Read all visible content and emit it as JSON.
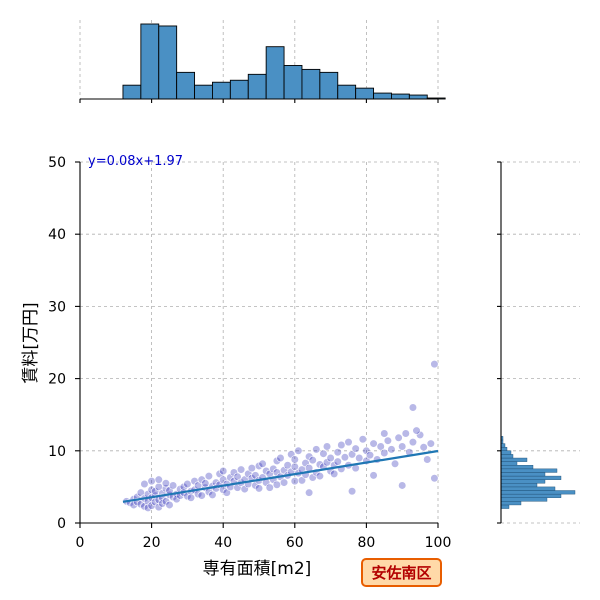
{
  "chart_data": {
    "type": "scatter",
    "xlabel": "専有面積[m2]",
    "ylabel": "賃料[万円]",
    "xlim": [
      0,
      100
    ],
    "ylim": [
      0,
      50
    ],
    "xticks": [
      0,
      20,
      40,
      60,
      80,
      100
    ],
    "yticks": [
      0,
      10,
      20,
      30,
      40,
      50
    ],
    "grid": true,
    "annotation": "y=0.08x+1.97",
    "badge": "安佐南区",
    "regression": {
      "slope": 0.08,
      "intercept": 1.97,
      "x_range": [
        12,
        100
      ]
    },
    "colors": {
      "points": "#3333bb",
      "regression": "#1f77b4",
      "histogram": "#4a90c4",
      "badge_fill": "#ffd9a8",
      "badge_border": "#e85d00",
      "badge_text": "#b30000"
    },
    "x_histogram": {
      "bins": [
        12,
        17,
        22,
        27,
        32,
        37,
        42,
        47,
        52,
        57,
        62,
        67,
        72,
        77,
        82,
        87,
        92,
        97
      ],
      "counts": [
        14,
        76,
        74,
        27,
        14,
        17,
        19,
        25,
        53,
        34,
        30,
        27,
        14,
        11,
        6,
        5,
        4,
        1
      ]
    },
    "y_histogram": {
      "bins": [
        2.0,
        2.5,
        3.0,
        3.5,
        4.0,
        4.5,
        5.0,
        5.5,
        6.0,
        6.5,
        7.0,
        7.5,
        8.0,
        8.5,
        9.0,
        9.5,
        10.0,
        10.5,
        11.0,
        11.5
      ],
      "counts": [
        8,
        20,
        46,
        60,
        74,
        54,
        36,
        44,
        60,
        44,
        56,
        32,
        16,
        26,
        12,
        10,
        6,
        4,
        2,
        2
      ]
    },
    "points": [
      [
        13,
        3.0
      ],
      [
        14,
        2.8
      ],
      [
        15,
        3.3
      ],
      [
        15,
        2.5
      ],
      [
        16,
        3.6
      ],
      [
        16,
        2.9
      ],
      [
        17,
        4.2
      ],
      [
        17,
        2.6
      ],
      [
        18,
        3.4
      ],
      [
        18,
        2.3
      ],
      [
        18,
        5.4
      ],
      [
        19,
        3.0
      ],
      [
        19,
        4.0
      ],
      [
        19,
        2.1
      ],
      [
        20,
        3.5
      ],
      [
        20,
        4.6
      ],
      [
        20,
        2.4
      ],
      [
        20,
        5.8
      ],
      [
        21,
        3.8
      ],
      [
        21,
        2.9
      ],
      [
        21,
        4.4
      ],
      [
        22,
        3.2
      ],
      [
        22,
        5.0
      ],
      [
        22,
        2.2
      ],
      [
        22,
        6.0
      ],
      [
        23,
        4.1
      ],
      [
        23,
        3.5
      ],
      [
        23,
        2.7
      ],
      [
        24,
        4.8
      ],
      [
        24,
        3.0
      ],
      [
        24,
        5.5
      ],
      [
        25,
        3.9
      ],
      [
        25,
        4.5
      ],
      [
        25,
        2.5
      ],
      [
        26,
        3.6
      ],
      [
        26,
        5.2
      ],
      [
        27,
        4.0
      ],
      [
        27,
        3.3
      ],
      [
        28,
        4.7
      ],
      [
        28,
        3.8
      ],
      [
        29,
        5.0
      ],
      [
        29,
        4.2
      ],
      [
        30,
        3.7
      ],
      [
        30,
        5.4
      ],
      [
        31,
        4.4
      ],
      [
        31,
        3.5
      ],
      [
        32,
        5.8
      ],
      [
        32,
        4.6
      ],
      [
        33,
        4.0
      ],
      [
        33,
        5.2
      ],
      [
        34,
        3.8
      ],
      [
        34,
        6.0
      ],
      [
        35,
        4.9
      ],
      [
        35,
        5.5
      ],
      [
        36,
        4.3
      ],
      [
        36,
        6.5
      ],
      [
        37,
        5.1
      ],
      [
        37,
        3.9
      ],
      [
        38,
        5.6
      ],
      [
        38,
        4.8
      ],
      [
        39,
        6.8
      ],
      [
        39,
        5.3
      ],
      [
        40,
        4.6
      ],
      [
        40,
        6.0
      ],
      [
        40,
        7.2
      ],
      [
        41,
        5.4
      ],
      [
        41,
        4.2
      ],
      [
        42,
        6.3
      ],
      [
        42,
        5.0
      ],
      [
        43,
        5.8
      ],
      [
        43,
        7.0
      ],
      [
        44,
        4.9
      ],
      [
        44,
        6.4
      ],
      [
        45,
        5.6
      ],
      [
        45,
        7.4
      ],
      [
        46,
        6.0
      ],
      [
        46,
        4.7
      ],
      [
        47,
        5.4
      ],
      [
        47,
        6.8
      ],
      [
        48,
        6.2
      ],
      [
        48,
        7.6
      ],
      [
        49,
        5.2
      ],
      [
        49,
        6.6
      ],
      [
        50,
        5.9
      ],
      [
        50,
        7.9
      ],
      [
        50,
        4.8
      ],
      [
        51,
        6.3
      ],
      [
        51,
        8.2
      ],
      [
        52,
        5.6
      ],
      [
        52,
        7.2
      ],
      [
        53,
        6.8
      ],
      [
        53,
        4.9
      ],
      [
        54,
        7.5
      ],
      [
        54,
        6.0
      ],
      [
        55,
        8.6
      ],
      [
        55,
        5.3
      ],
      [
        55,
        7.0
      ],
      [
        56,
        6.4
      ],
      [
        56,
        9.0
      ],
      [
        57,
        7.3
      ],
      [
        57,
        5.6
      ],
      [
        58,
        8.0
      ],
      [
        58,
        6.6
      ],
      [
        59,
        7.1
      ],
      [
        59,
        9.5
      ],
      [
        60,
        5.8
      ],
      [
        60,
        7.8
      ],
      [
        60,
        8.8
      ],
      [
        61,
        6.9
      ],
      [
        61,
        10.0
      ],
      [
        62,
        7.4
      ],
      [
        62,
        5.9
      ],
      [
        63,
        8.3
      ],
      [
        63,
        6.7
      ],
      [
        64,
        9.2
      ],
      [
        64,
        7.6
      ],
      [
        65,
        6.3
      ],
      [
        65,
        8.7
      ],
      [
        66,
        10.2
      ],
      [
        66,
        7.0
      ],
      [
        67,
        8.1
      ],
      [
        67,
        6.5
      ],
      [
        68,
        9.6
      ],
      [
        68,
        7.8
      ],
      [
        69,
        8.4
      ],
      [
        69,
        10.6
      ],
      [
        70,
        7.2
      ],
      [
        70,
        9.0
      ],
      [
        71,
        8.0
      ],
      [
        71,
        6.8
      ],
      [
        72,
        9.8
      ],
      [
        72,
        8.5
      ],
      [
        73,
        7.5
      ],
      [
        73,
        10.8
      ],
      [
        74,
        9.1
      ],
      [
        75,
        8.0
      ],
      [
        75,
        11.2
      ],
      [
        76,
        9.5
      ],
      [
        77,
        7.6
      ],
      [
        77,
        10.3
      ],
      [
        78,
        9.0
      ],
      [
        79,
        11.6
      ],
      [
        80,
        8.6
      ],
      [
        80,
        10.0
      ],
      [
        81,
        9.4
      ],
      [
        82,
        11.0
      ],
      [
        83,
        8.8
      ],
      [
        84,
        10.6
      ],
      [
        85,
        9.7
      ],
      [
        86,
        11.4
      ],
      [
        87,
        10.2
      ],
      [
        88,
        8.2
      ],
      [
        89,
        11.8
      ],
      [
        90,
        5.2
      ],
      [
        90,
        10.6
      ],
      [
        91,
        12.4
      ],
      [
        92,
        9.8
      ],
      [
        93,
        11.2
      ],
      [
        95,
        12.2
      ],
      [
        97,
        8.8
      ],
      [
        99,
        22.0
      ],
      [
        93,
        16.0
      ],
      [
        94,
        12.8
      ],
      [
        99,
        6.2
      ],
      [
        96,
        10.5
      ],
      [
        98,
        11.0
      ],
      [
        76,
        4.4
      ],
      [
        82,
        6.6
      ],
      [
        64,
        4.2
      ],
      [
        85,
        12.4
      ]
    ]
  }
}
